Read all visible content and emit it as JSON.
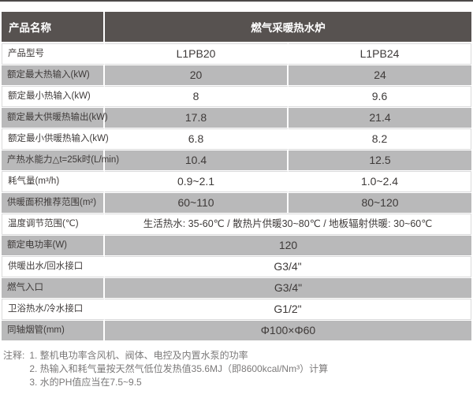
{
  "colors": {
    "top_rule": "#4c4948",
    "header_bg": "#575250",
    "header_text": "#ffffff",
    "row_gray_bg": "#b9b9ba",
    "row_white_bg": "#ffffff",
    "text": "#3e3a39",
    "note_text": "#7b7979"
  },
  "table": {
    "header": {
      "col1": "产品名称",
      "col2": "燃气采暖热水炉"
    },
    "rows": [
      {
        "label": "产品型号",
        "values": [
          "L1PB20",
          "L1PB24"
        ]
      },
      {
        "label": "额定最大热输入(kW)",
        "values": [
          "20",
          "24"
        ]
      },
      {
        "label": "额定最小热输入(kW)",
        "values": [
          "8",
          "9.6"
        ]
      },
      {
        "label": "额定最大供暖热输出(kW)",
        "values": [
          "17.8",
          "21.4"
        ]
      },
      {
        "label": "额定最小供暖热输入(kW)",
        "values": [
          "6.8",
          "8.2"
        ]
      },
      {
        "label": "产热水能力△t=25k时(L/min)",
        "values": [
          "10.4",
          "12.5"
        ]
      },
      {
        "label": "耗气量(m³/h)",
        "values": [
          "0.9~2.1",
          "1.0~2.4"
        ]
      },
      {
        "label": "供暖面积推荐范围(m²)",
        "values": [
          "60~110",
          "80~120"
        ]
      },
      {
        "label": "温度调节范围(℃)",
        "values": [
          "生活热水: 35-60℃ / 散热片供暖30~80℃ / 地板辐射供暖: 30~60℃"
        ]
      },
      {
        "label": "额定电功率(W)",
        "values": [
          "120"
        ]
      },
      {
        "label": "供暖出水/回水接口",
        "values": [
          "G3/4\""
        ]
      },
      {
        "label": "燃气入口",
        "values": [
          "G3/4\""
        ]
      },
      {
        "label": "卫浴热水/冷水接口",
        "values": [
          "G1/2\""
        ]
      },
      {
        "label": "同轴烟管(mm)",
        "values": [
          "Φ100×Φ60"
        ]
      }
    ]
  },
  "notes": {
    "prefix": "注释:",
    "items": [
      "1. 整机电功率含风机、阀体、电控及内置水泵的功率",
      "2. 热输入和耗气量按天然气低位发热值35.6MJ（即8600kcal/Nm³）计算",
      "3. 水的PH值应当在7.5~9.5"
    ]
  }
}
